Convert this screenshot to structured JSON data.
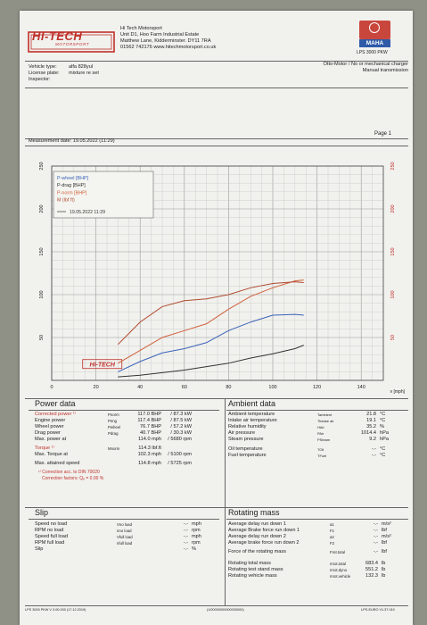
{
  "company": {
    "logo_text": "HI-TECH",
    "logo_sub": "MOTORSPORT",
    "name": "Hi Tech Motorsport",
    "addr1": "Unit D1, Hoo Farm Industrial Estate",
    "addr2": "Matthew Lane, Kidderminster. DY11 7RA",
    "contact": "01562 742176 www.hitechmotorsport.co.uk"
  },
  "maha": {
    "logo": "MAHA",
    "model": "LPS 3000 PKW"
  },
  "vehicle": {
    "type_label": "Vehicle type:",
    "type_value": "alfa 828yul",
    "plate_label": "License plate:",
    "plate_value": "mixture re set",
    "inspector_label": "Inspector:"
  },
  "engine": {
    "line1": "Otto-Motor / No or mechanical charger",
    "line2": "Manual transmission"
  },
  "page": "Page 1",
  "measurement_date": "Measurement date: 19.05.2022 (11:29)",
  "legend": {
    "items": [
      "P-wheel [BHP]",
      "P-drag [BHP]",
      "P-norm [BHP]",
      "M (lbf ft)"
    ],
    "date": "19.05.2022 11:29"
  },
  "chart_data": {
    "type": "line",
    "x_unit": "v [mph]",
    "xlim": [
      0,
      150
    ],
    "x_ticks": [
      20,
      40,
      60,
      80,
      100,
      120,
      140
    ],
    "left_ylim": [
      0,
      250
    ],
    "left_ticks": [
      50,
      100,
      150,
      200,
      250
    ],
    "right_ylim": [
      0,
      250
    ],
    "right_ticks": [
      50,
      100,
      150,
      200,
      250
    ],
    "grid": true,
    "legend_position": "top-left",
    "watermark": "HI-TECH",
    "series": [
      {
        "name": "P-wheel [BHP]",
        "color": "#3a63b8",
        "x": [
          30,
          40,
          50,
          60,
          70,
          80,
          90,
          100,
          110,
          114
        ],
        "y": [
          10,
          22,
          32,
          37,
          44,
          58,
          68,
          76,
          77,
          76
        ]
      },
      {
        "name": "P-norm [BHP]",
        "color": "#d0603a",
        "x": [
          30,
          40,
          50,
          60,
          70,
          80,
          90,
          100,
          110,
          114
        ],
        "y": [
          20,
          35,
          50,
          58,
          66,
          83,
          98,
          108,
          116,
          117
        ]
      },
      {
        "name": "M (lbf ft)",
        "color": "#b04a30",
        "x": [
          30,
          40,
          50,
          60,
          70,
          80,
          90,
          100,
          110,
          114
        ],
        "y": [
          42,
          68,
          86,
          93,
          95,
          100,
          108,
          113,
          115,
          114
        ]
      },
      {
        "name": "P-drag [BHP]",
        "color": "#333333",
        "x": [
          30,
          40,
          50,
          60,
          70,
          80,
          90,
          100,
          110,
          114
        ],
        "y": [
          4,
          6,
          9,
          12,
          16,
          20,
          26,
          31,
          37,
          41
        ]
      }
    ]
  },
  "power": {
    "heading": "Power data",
    "labels": [
      "Corrected power ¹⁾",
      "Engine power",
      "Wheel power",
      "Drag power",
      "Max. power at"
    ],
    "syms": [
      "Pnorm",
      "Peng",
      "Pwheel",
      "Pdrag",
      ""
    ],
    "bhp": [
      "117.0  BHP",
      "117.4  BHP",
      "76.7  BHP",
      "40.7  BHP",
      "114.0  mph"
    ],
    "kw": [
      "/   87.3  kW",
      "/   87.5  kW",
      "/   57.2  kW",
      "/   30.3  kW",
      "/   5680  rpm"
    ],
    "torque_label": "Torque ¹⁾",
    "torque_sub": "Max. Torque at",
    "torque_sym": "Mnorm",
    "torque_val": "114.3  lbf.ft",
    "torque_at": "102.3  mph",
    "torque_rpm": "/   5100  rpm",
    "speed_label": "Max. attained speed",
    "speed_val": "114.8  mph",
    "speed_rpm": "/   5725  rpm",
    "note1": "¹⁾ Correction acc. to DIN 70020",
    "note2": "Correction factors: Qₑ =  0.00 %"
  },
  "ambient": {
    "heading": "Ambient data",
    "labels": [
      "Ambient temperature",
      "Intake air temperature",
      "Relative humidity",
      "Air pressure",
      "Steam pressure"
    ],
    "syms": [
      "Tambient",
      "Tintake air",
      "HAir",
      "PAir",
      "PSteam"
    ],
    "vals": [
      "21.8",
      "19.1",
      "35.2",
      "1014.4",
      "9.2"
    ],
    "units": [
      "°C",
      "°C",
      "%",
      "hPa",
      "hPa"
    ],
    "labels2": [
      "Oil temperature",
      "Fuel temperature"
    ],
    "syms2": [
      "TOil",
      "TFuel"
    ],
    "vals2": [
      "-.-",
      "-.-"
    ],
    "units2": [
      "°C",
      "°C"
    ]
  },
  "slip": {
    "heading": "Slip",
    "labels": [
      "Speed no load",
      "RPM no load",
      "Speed full load",
      "RPM full load",
      "Slip"
    ],
    "syms": [
      "Vno load",
      "nno load",
      "Vfull load",
      "nfull load",
      ""
    ],
    "vals": [
      "-.-",
      "-.-",
      "-.-",
      "-.-",
      "-.-"
    ],
    "units": [
      "mph",
      "rpm",
      "mph",
      "rpm",
      "%"
    ]
  },
  "rotating": {
    "heading": "Rotating mass",
    "labels": [
      "Average delay run down 1",
      "Average Brake force run down 1",
      "Average delay run down 2",
      "Average brake force run down 2",
      "Force of the rotating mass"
    ],
    "syms": [
      "a1",
      "F1",
      "a2",
      "F2",
      "Frot.total"
    ],
    "vals": [
      "-.-",
      "-.-",
      "-.-",
      "-.-",
      "-.-"
    ],
    "units": [
      "m/s²",
      "lbf",
      "m/s²",
      "lbf",
      "lbf"
    ],
    "labels2": [
      "Rotating total mass",
      "Rotating test stand mass",
      "Rotating vehicle mass"
    ],
    "syms2": [
      "mrot.total",
      "mrot.dyno",
      "mrot.vehicle"
    ],
    "vals2": [
      "683.4",
      "551.2",
      "132.3"
    ],
    "units2": [
      "lb",
      "lb",
      "lb"
    ]
  },
  "footer": {
    "left": "LPS 3000 PKW V 3.00.000 (17.12.2019)",
    "mid": "(1/00000000000000000)",
    "right": "LPS-EURO V1.37.010"
  }
}
